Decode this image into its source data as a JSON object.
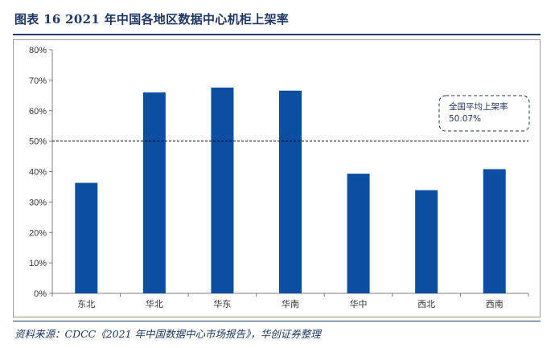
{
  "figure": {
    "title": "图表 16    2021 年中国各地区数据中心机柜上架率",
    "source": "资料来源：CDCC《2021 年中国数据中心市场报告》，华创证券整理"
  },
  "chart_data": {
    "type": "bar",
    "title": "",
    "xlabel": "",
    "ylabel": "",
    "categories": [
      "东北",
      "华北",
      "华东",
      "华南",
      "华中",
      "西北",
      "西南"
    ],
    "values": [
      36.3,
      66.0,
      67.6,
      66.6,
      39.3,
      33.9,
      40.8
    ],
    "value_unit": "%",
    "ylim": [
      0,
      80
    ],
    "yticks": [
      0,
      10,
      20,
      30,
      40,
      50,
      60,
      70,
      80
    ],
    "ytick_labels": [
      "0%",
      "10%",
      "20%",
      "30%",
      "40%",
      "50%",
      "60%",
      "70%",
      "80%"
    ],
    "grid": false,
    "bar_color": "#0b4ea2",
    "reference_line": {
      "value": 50.07,
      "style": "dashed",
      "annotation": [
        "全国平均上架率",
        "50.07%"
      ]
    }
  }
}
